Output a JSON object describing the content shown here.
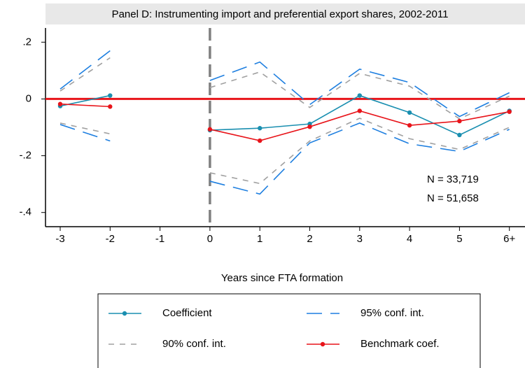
{
  "chart_data": {
    "type": "line",
    "title": "Panel D: Instrumenting import and preferential export shares, 2002-2011",
    "xlabel": "Years since FTA formation",
    "categories": [
      "-3",
      "-2",
      "-1",
      "0",
      "1",
      "2",
      "3",
      "4",
      "5",
      "6+"
    ],
    "series": [
      {
        "name": "Coefficient",
        "color": "#1a8fb0",
        "style": "solid",
        "markers": true,
        "values": [
          -0.025,
          0.012,
          null,
          -0.11,
          -0.103,
          -0.088,
          0.012,
          -0.048,
          -0.127,
          -0.042
        ]
      },
      {
        "name": "95% conf. int.",
        "color": "#1e7fe0",
        "style": "long-dash",
        "upper": [
          0.035,
          0.17,
          null,
          0.065,
          0.13,
          -0.02,
          0.105,
          0.058,
          -0.062,
          0.022
        ],
        "lower": [
          -0.09,
          -0.148,
          null,
          -0.29,
          -0.335,
          -0.155,
          -0.085,
          -0.158,
          -0.185,
          -0.107
        ]
      },
      {
        "name": "90% conf. int.",
        "color": "#a0a0a0",
        "style": "short-dash",
        "upper": [
          0.028,
          0.145,
          null,
          0.04,
          0.095,
          -0.03,
          0.09,
          0.045,
          -0.07,
          0.01
        ],
        "lower": [
          -0.085,
          -0.123,
          null,
          -0.26,
          -0.298,
          -0.148,
          -0.068,
          -0.14,
          -0.178,
          -0.1
        ]
      },
      {
        "name": "Benchmark coef.",
        "color": "#e8141a",
        "style": "solid",
        "markers": true,
        "values": [
          -0.018,
          -0.027,
          null,
          -0.107,
          -0.147,
          -0.098,
          -0.042,
          -0.093,
          -0.078,
          -0.045
        ]
      }
    ],
    "ylim": [
      -0.45,
      0.25
    ],
    "yticks": [
      {
        "value": 0.2,
        "label": ".2"
      },
      0,
      {
        "value": -0.2,
        "label": "-.2"
      },
      {
        "value": -0.4,
        "label": "-.4"
      }
    ],
    "hline": {
      "value": 0,
      "color": "#e8141a"
    },
    "vline": {
      "category": "0",
      "color": "#808080"
    },
    "annotations": [
      {
        "text": "N = 33,719",
        "color": "#1a8fb0"
      },
      {
        "text": "N = 51,658",
        "color": "#e8141a"
      }
    ],
    "legend": "bottom"
  }
}
